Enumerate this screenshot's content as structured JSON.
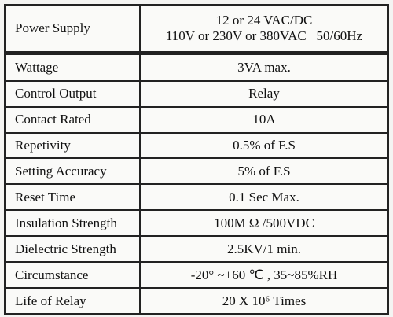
{
  "table": {
    "rows": [
      {
        "label": "Power Supply",
        "lines": [
          "12 or 24 VAC/DC",
          "110V or 230V or 380VAC   50/60Hz"
        ]
      },
      {
        "label": "Wattage",
        "lines": [
          "3VA max."
        ]
      },
      {
        "label": "Control Output",
        "lines": [
          "Relay"
        ]
      },
      {
        "label": "Contact Rated",
        "lines": [
          "10A"
        ]
      },
      {
        "label": "Repetivity",
        "lines": [
          "0.5% of F.S"
        ]
      },
      {
        "label": "Setting Accuracy",
        "lines": [
          "5% of F.S"
        ]
      },
      {
        "label": "Reset Time",
        "lines": [
          "0.1 Sec Max."
        ]
      },
      {
        "label": "Insulation Strength",
        "lines": [
          "100M Ω /500VDC"
        ]
      },
      {
        "label": "Dielectric Strength",
        "lines": [
          "2.5KV/1 min."
        ]
      },
      {
        "label": "Circumstance",
        "lines": [
          "-20° ~+60 ℃ , 35~85%RH"
        ]
      },
      {
        "label": "Life of Relay",
        "lines": [
          "20 X 10⁶ Times"
        ]
      }
    ]
  }
}
